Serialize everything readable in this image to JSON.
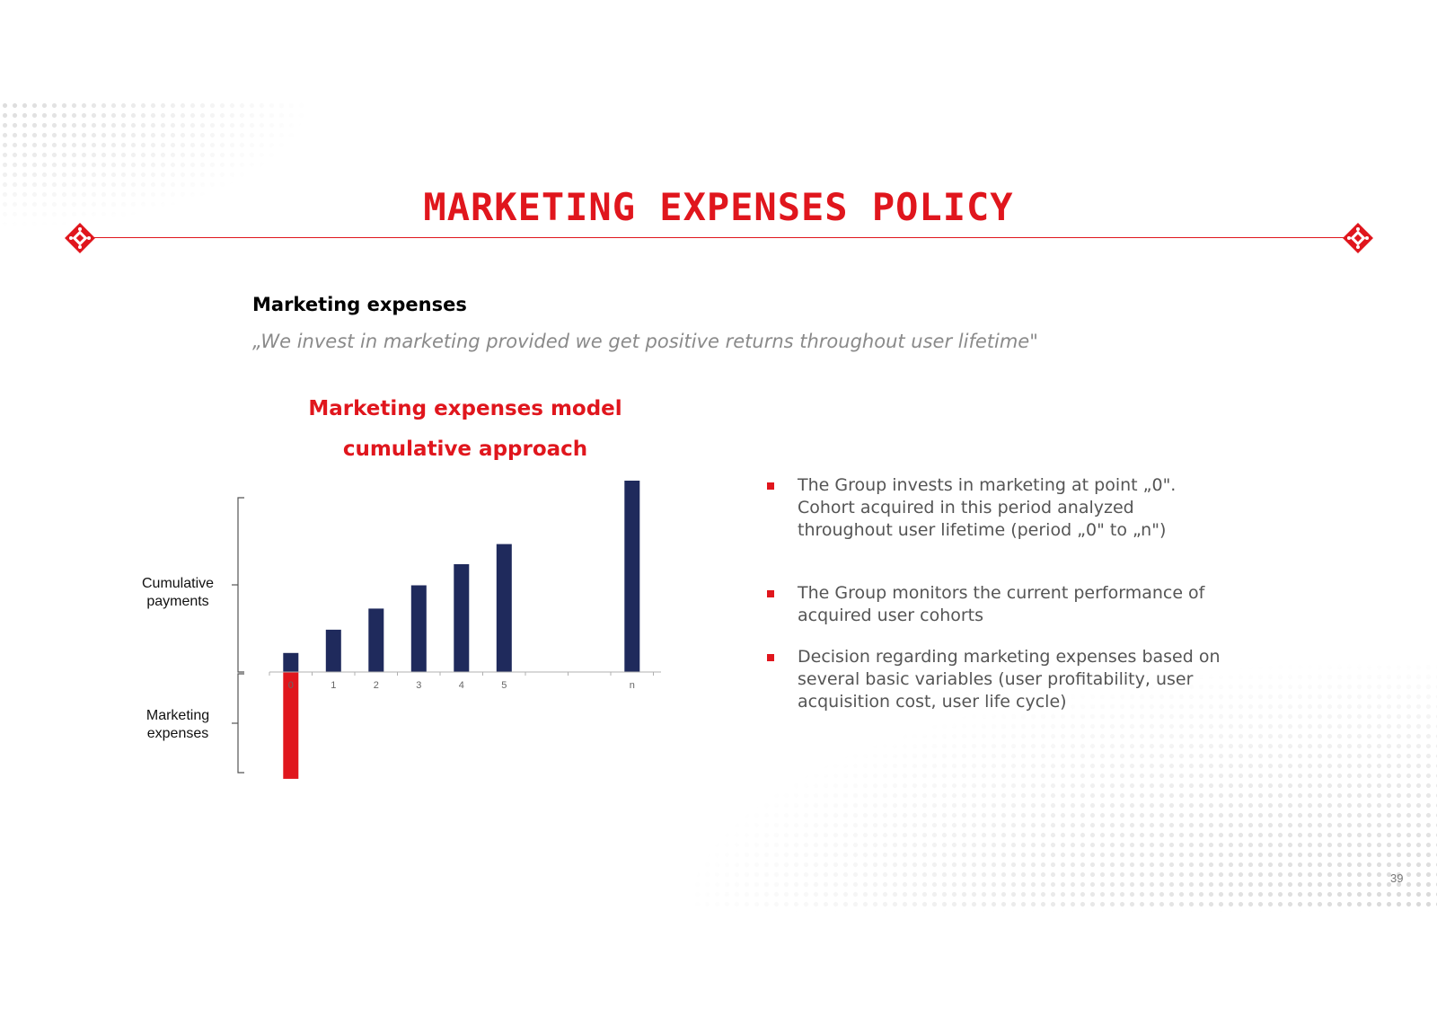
{
  "slide": {
    "title": "Marketing expenses policy",
    "section_heading": "Marketing expenses",
    "quote": "„We invest in marketing provided we get positive returns throughout user lifetime\"",
    "page_number": "39"
  },
  "colors": {
    "accent_red": "#e0161d",
    "bar_navy": "#1f2a5c",
    "text_grey": "#555555"
  },
  "chart_title": {
    "line1": "Marketing expenses model",
    "line2": "cumulative approach"
  },
  "bracket_labels": {
    "upper": [
      "Cumulative",
      "payments"
    ],
    "lower": [
      "Marketing",
      "expenses"
    ]
  },
  "chart_data": {
    "type": "bar",
    "title": "Marketing expenses model cumulative approach",
    "categories": [
      "0",
      "1",
      "2",
      "3",
      "4",
      "5",
      "",
      "",
      "n"
    ],
    "series": [
      {
        "name": "Cumulative payments",
        "values": [
          18,
          40,
          60,
          82,
          102,
          121,
          null,
          null,
          181
        ],
        "color": "#1f2a5c"
      },
      {
        "name": "Marketing expenses",
        "values": [
          -101,
          null,
          null,
          null,
          null,
          null,
          null,
          null,
          null
        ],
        "color": "#e0161d"
      }
    ],
    "ylim": [
      -101,
      181
    ],
    "grid": false,
    "legend": "none"
  },
  "bullets": [
    "The Group invests in marketing at point „0\". Cohort acquired in this period analyzed throughout user lifetime (period „0\" to „n\")",
    "The Group monitors the current performance of acquired user cohorts",
    "Decision regarding marketing expenses based on several basic variables (user profitability, user acquisition cost, user life cycle)"
  ]
}
